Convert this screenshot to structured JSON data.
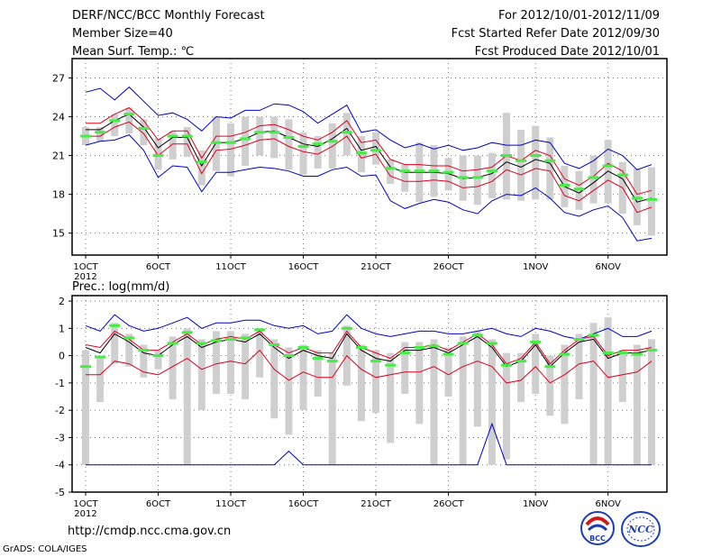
{
  "header": {
    "title": "DERF/NCC/BCC Monthly Forecast",
    "member_size": "Member Size=40",
    "variable": "Mean Surf. Temp.: ℃",
    "period": "For 2012/10/01-2012/11/09",
    "started_refer": "Fcst Started Refer Date 2012/09/30",
    "produced": "Fcst Produced Date 2012/10/01"
  },
  "footer": {
    "url": "http://cmdp.ncc.cma.gov.cn",
    "credit": "GrADS: COLA/IGES",
    "logo1_text": "BCC",
    "logo2_text": "NCC"
  },
  "colors": {
    "envelope": "#0000c8",
    "spread": "#e00020",
    "mean": "#000000",
    "box": "#cfcfcf",
    "marker": "#44ee44",
    "grid": "#777777"
  },
  "chart_data": [
    {
      "type": "line",
      "title": "Mean Surf. Temp.: ℃",
      "xlabel": "",
      "ylabel": "℃",
      "ylim": [
        13.3,
        28.5
      ],
      "yticks": [
        15,
        18,
        21,
        24,
        27
      ],
      "x_start_day": 1,
      "x_count": 40,
      "xtick_labels": [
        "1OCT",
        "6OCT",
        "11OCT",
        "16OCT",
        "21OCT",
        "26OCT",
        "1NOV",
        "6NOV"
      ],
      "xtick_days": [
        1,
        6,
        11,
        16,
        21,
        26,
        32,
        37
      ],
      "year_label": "2012",
      "grid": true,
      "series": [
        {
          "name": "max",
          "values": [
            25.9,
            26.2,
            25.3,
            26.3,
            25.2,
            24.1,
            24.3,
            23.8,
            22.9,
            24.0,
            23.9,
            24.5,
            24.5,
            25.0,
            24.9,
            24.4,
            23.5,
            24.2,
            24.9,
            22.8,
            23.0,
            22.2,
            21.6,
            21.9,
            21.5,
            21.8,
            21.4,
            21.6,
            22.0,
            21.8,
            21.8,
            22.2,
            22.0,
            20.4,
            20.0,
            20.6,
            21.5,
            21.0,
            19.9,
            20.3
          ]
        },
        {
          "name": "upper",
          "values": [
            23.5,
            23.5,
            24.2,
            24.7,
            23.7,
            22.2,
            22.9,
            22.9,
            20.8,
            22.5,
            22.5,
            22.8,
            23.3,
            23.4,
            23.0,
            22.5,
            22.2,
            22.8,
            23.7,
            22.0,
            22.2,
            20.7,
            20.3,
            20.3,
            20.2,
            20.2,
            19.8,
            19.9,
            20.1,
            21.0,
            20.6,
            21.4,
            21.0,
            19.2,
            18.7,
            19.4,
            20.4,
            19.8,
            18.0,
            18.3
          ]
        },
        {
          "name": "mean",
          "values": [
            23.0,
            23.0,
            23.7,
            24.2,
            23.2,
            21.6,
            22.4,
            22.4,
            20.2,
            22.0,
            22.0,
            22.3,
            22.8,
            22.9,
            22.4,
            21.9,
            21.7,
            22.3,
            23.1,
            21.4,
            21.7,
            20.1,
            19.7,
            19.7,
            19.7,
            19.6,
            19.2,
            19.3,
            19.6,
            20.5,
            20.1,
            20.7,
            20.4,
            18.6,
            18.1,
            18.9,
            19.8,
            19.2,
            17.4,
            17.7
          ]
        },
        {
          "name": "lower",
          "values": [
            22.5,
            22.5,
            23.2,
            23.6,
            22.7,
            21.0,
            21.9,
            21.9,
            19.6,
            21.4,
            21.5,
            21.8,
            22.2,
            22.3,
            21.7,
            21.3,
            21.1,
            21.7,
            22.5,
            20.8,
            21.1,
            19.4,
            19.0,
            19.0,
            19.1,
            19.0,
            18.5,
            18.6,
            19.0,
            19.9,
            19.5,
            20.0,
            19.8,
            17.9,
            17.5,
            18.3,
            19.1,
            18.5,
            16.6,
            17.0
          ]
        },
        {
          "name": "min",
          "values": [
            21.8,
            22.1,
            22.2,
            22.6,
            21.4,
            19.3,
            20.2,
            20.1,
            18.2,
            19.7,
            19.7,
            19.9,
            20.1,
            20.0,
            19.8,
            19.4,
            19.4,
            19.9,
            20.1,
            19.4,
            19.5,
            17.5,
            16.9,
            17.3,
            17.6,
            17.4,
            16.8,
            16.5,
            17.5,
            18.0,
            17.9,
            18.5,
            17.7,
            16.6,
            16.3,
            16.8,
            17.1,
            16.2,
            14.4,
            14.6
          ]
        },
        {
          "name": "box_high",
          "values": [
            23.2,
            23.2,
            24.2,
            24.7,
            23.8,
            22.3,
            22.9,
            23.2,
            21.4,
            24.0,
            23.5,
            24.0,
            24.0,
            24.0,
            23.8,
            22.8,
            22.5,
            23.5,
            24.3,
            22.5,
            22.8,
            20.7,
            20.3,
            22.0,
            21.8,
            20.8,
            21.0,
            21.0,
            21.2,
            24.3,
            23.0,
            23.3,
            22.4,
            20.2,
            19.8,
            21.0,
            22.2,
            20.5,
            20.0,
            20.1
          ]
        },
        {
          "name": "box_low",
          "values": [
            21.8,
            22.1,
            22.5,
            22.7,
            21.8,
            19.9,
            20.7,
            20.9,
            18.7,
            19.8,
            19.4,
            20.2,
            21.0,
            20.8,
            19.9,
            19.5,
            20.0,
            20.0,
            21.0,
            19.7,
            20.3,
            18.8,
            18.2,
            17.4,
            17.8,
            18.3,
            17.5,
            17.2,
            17.7,
            17.6,
            17.5,
            17.6,
            17.6,
            17.0,
            16.8,
            17.3,
            17.3,
            16.5,
            15.6,
            14.8
          ]
        },
        {
          "name": "obs_marker",
          "values": [
            22.5,
            22.8,
            23.7,
            24.2,
            23.1,
            21.0,
            22.5,
            22.5,
            20.5,
            22.0,
            22.0,
            22.3,
            22.8,
            22.8,
            22.4,
            21.7,
            21.9,
            22.1,
            22.8,
            21.2,
            21.4,
            20.0,
            19.8,
            19.8,
            19.8,
            19.7,
            19.3,
            19.3,
            19.8,
            21.0,
            20.6,
            21.0,
            20.6,
            18.7,
            18.4,
            19.3,
            20.2,
            19.5,
            17.7,
            17.6
          ]
        }
      ]
    },
    {
      "type": "line",
      "title": "Prec.: log(mm/d)",
      "xlabel": "",
      "ylabel": "log(mm/d)",
      "ylim": [
        -5,
        2.2
      ],
      "yticks": [
        -5,
        -4,
        -3,
        -2,
        -1,
        0,
        1,
        2
      ],
      "x_start_day": 1,
      "x_count": 40,
      "xtick_labels": [
        "1OCT",
        "6OCT",
        "11OCT",
        "16OCT",
        "21OCT",
        "26OCT",
        "1NOV",
        "6NOV"
      ],
      "xtick_days": [
        1,
        6,
        11,
        16,
        21,
        26,
        32,
        37
      ],
      "year_label": "2012",
      "grid": true,
      "series": [
        {
          "name": "max",
          "values": [
            1.1,
            0.9,
            1.5,
            1.1,
            0.9,
            1.0,
            1.2,
            1.4,
            1.0,
            1.2,
            1.2,
            1.3,
            1.3,
            1.1,
            1.0,
            1.1,
            0.8,
            0.9,
            1.5,
            1.0,
            0.8,
            0.7,
            0.8,
            0.9,
            0.9,
            0.8,
            0.8,
            0.9,
            1.0,
            0.8,
            0.7,
            1.0,
            0.9,
            0.7,
            0.6,
            0.8,
            1.0,
            0.7,
            0.7,
            0.9
          ]
        },
        {
          "name": "upper",
          "values": [
            0.4,
            0.3,
            0.9,
            0.6,
            0.2,
            0.2,
            0.5,
            0.8,
            0.4,
            0.6,
            0.7,
            0.6,
            0.9,
            0.4,
            0.1,
            0.3,
            0.1,
            0.1,
            0.9,
            0.3,
            0.1,
            -0.1,
            0.3,
            0.3,
            0.4,
            0.2,
            0.5,
            0.8,
            0.4,
            -0.3,
            -0.1,
            0.5,
            -0.3,
            0.2,
            0.6,
            0.7,
            0.0,
            0.2,
            0.2,
            0.3
          ]
        },
        {
          "name": "mean",
          "values": [
            0.3,
            0.1,
            0.8,
            0.5,
            0.1,
            0.0,
            0.4,
            0.7,
            0.3,
            0.5,
            0.6,
            0.5,
            0.8,
            0.3,
            -0.1,
            0.2,
            0.0,
            -0.1,
            0.8,
            0.2,
            -0.1,
            -0.2,
            0.2,
            0.2,
            0.3,
            0.1,
            0.4,
            0.7,
            0.3,
            -0.4,
            -0.2,
            0.4,
            -0.4,
            0.1,
            0.5,
            0.6,
            -0.1,
            0.1,
            0.1,
            0.2
          ]
        },
        {
          "name": "lower",
          "values": [
            -0.7,
            -0.7,
            -0.2,
            -0.3,
            -0.6,
            -0.7,
            -0.4,
            -0.1,
            -0.5,
            -0.3,
            -0.2,
            -0.3,
            0.2,
            -0.5,
            -0.9,
            -0.6,
            -0.8,
            -0.8,
            0.0,
            -0.5,
            -0.8,
            -0.7,
            -0.6,
            -0.6,
            -0.4,
            -0.7,
            -0.4,
            -0.2,
            -0.4,
            -1.0,
            -0.9,
            -0.4,
            -1.0,
            -0.7,
            -0.3,
            -0.2,
            -0.8,
            -0.7,
            -0.6,
            -0.2
          ]
        },
        {
          "name": "min",
          "values": [
            -4,
            -4,
            -4,
            -4,
            -4,
            -4,
            -4,
            -4,
            -4,
            -4,
            -4,
            -4,
            -4,
            -4,
            -3.5,
            -4,
            -4,
            -4,
            -4,
            -4,
            -4,
            -4,
            -4,
            -4,
            -4,
            -4,
            -4,
            -4,
            -2.5,
            -4,
            -4,
            -4,
            -4,
            -4,
            -4,
            -4,
            -4,
            -4,
            -4,
            -4
          ]
        },
        {
          "name": "box_high",
          "values": [
            0.2,
            0.0,
            1.2,
            0.8,
            0.4,
            0.2,
            0.7,
            1.0,
            0.6,
            0.9,
            0.9,
            0.8,
            1.0,
            0.6,
            0.3,
            0.4,
            0.2,
            0.1,
            1.1,
            0.4,
            0.2,
            0.1,
            0.5,
            0.5,
            0.6,
            0.3,
            0.7,
            0.9,
            0.6,
            0.1,
            0.1,
            0.8,
            0.0,
            0.4,
            0.8,
            1.2,
            1.4,
            0.2,
            0.4,
            0.6
          ]
        },
        {
          "name": "box_low",
          "values": [
            -4.0,
            -1.7,
            -0.3,
            -0.4,
            -0.8,
            -0.5,
            -1.6,
            -4.0,
            -2.0,
            -1.4,
            -1.4,
            -1.6,
            -0.8,
            -2.3,
            -2.9,
            -2.0,
            -1.5,
            -4.0,
            -1.1,
            -2.4,
            -2.1,
            -3.2,
            -1.4,
            -2.5,
            -4.0,
            -1.5,
            -4.0,
            -2.6,
            -4.0,
            -3.8,
            -1.7,
            -1.4,
            -2.2,
            -2.5,
            -1.6,
            -4.0,
            -4.0,
            -1.7,
            -4.0,
            -4.0
          ]
        },
        {
          "name": "obs_marker",
          "values": [
            -0.4,
            -0.05,
            1.1,
            0.65,
            0.2,
            0.0,
            0.45,
            0.85,
            0.45,
            0.55,
            0.6,
            0.65,
            0.95,
            0.4,
            0.0,
            0.3,
            -0.1,
            -0.2,
            1.0,
            0.3,
            -0.2,
            -0.35,
            0.1,
            0.3,
            0.35,
            0.05,
            0.45,
            0.75,
            0.45,
            -0.35,
            -0.2,
            0.5,
            -0.4,
            0.05,
            0.6,
            0.75,
            0.1,
            0.1,
            0.05,
            0.2
          ]
        }
      ]
    }
  ]
}
